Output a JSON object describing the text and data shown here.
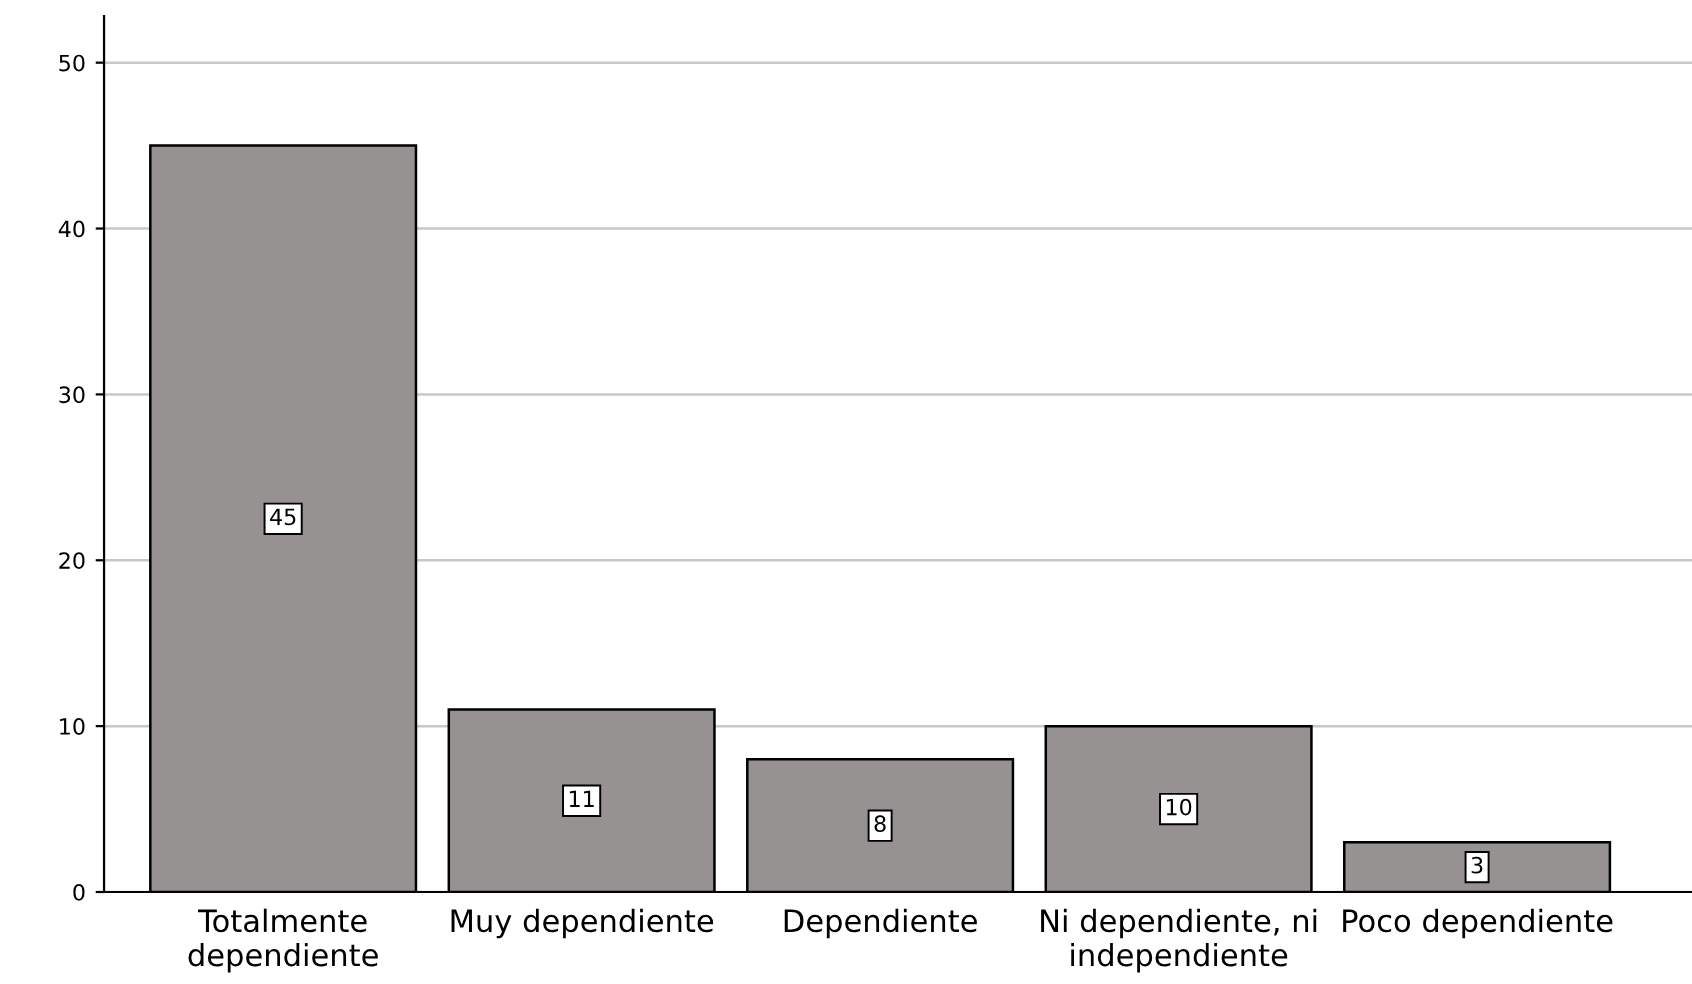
{
  "chart_data": {
    "type": "bar",
    "categories": [
      "Totalmente\ndependiente",
      "Muy dependiente",
      "Dependiente",
      "Ni dependiente, ni\nindependiente",
      "Poco dependiente"
    ],
    "values": [
      45,
      11,
      8,
      10,
      3
    ],
    "color": "#969291",
    "ylim": [
      0,
      52.8
    ],
    "yticks": [
      0,
      10,
      20,
      30,
      40,
      50
    ],
    "grid": "y",
    "data_labels": true,
    "legend": false
  }
}
